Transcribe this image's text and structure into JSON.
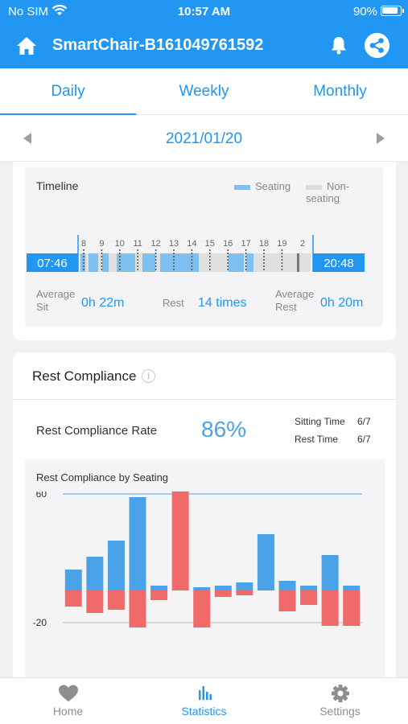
{
  "status": {
    "carrier": "No SIM",
    "time": "10:57 AM",
    "battery": "90%"
  },
  "appbar": {
    "title": "SmartChair-B161049761592"
  },
  "tabs": [
    "Daily",
    "Weekly",
    "Monthly"
  ],
  "date": "2021/01/20",
  "timeline": {
    "title": "Timeline",
    "legend_seating": "Seating",
    "legend_nonseating": "Non-seating",
    "hours": [
      "8",
      "9",
      "10",
      "11",
      "12",
      "13",
      "14",
      "15",
      "16",
      "17",
      "18",
      "19",
      "2"
    ],
    "start": "07:46",
    "end": "20:48",
    "avg_sit_label": "Average Sit",
    "avg_sit_value": "0h 22m",
    "rest_label": "Rest",
    "rest_value": "14 times",
    "avg_rest_label": "Average Rest",
    "avg_rest_value": "0h 20m"
  },
  "compliance": {
    "title": "Rest Compliance",
    "rate_label": "Rest Compliance Rate",
    "rate_value": "86%",
    "sitting_label": "Sitting Time",
    "sitting_value": "6/7",
    "rest_label": "Rest Time",
    "rest_value": "6/7",
    "chart_title": "Rest Compliance by Seating"
  },
  "chart_data": {
    "type": "bar",
    "title": "Rest Compliance by Seating",
    "yticks": [
      60,
      -20
    ],
    "reference_line": 60,
    "series": [
      {
        "color": "#4aa3e8",
        "values": [
          13,
          21,
          31,
          58,
          3,
          0,
          2,
          3,
          5,
          35,
          6,
          3,
          22,
          3
        ]
      },
      {
        "color": "#f06a6a",
        "values": [
          -10,
          -14,
          -12,
          -23,
          -6,
          64,
          -23,
          -4,
          -3,
          0,
          -13,
          -9,
          -22,
          -22
        ]
      }
    ],
    "colors": {
      "positive": "#4aa3e8",
      "negative": "#f06a6a",
      "reference": "#4aa3e8"
    }
  },
  "tabbar": {
    "items": [
      {
        "label": "Home",
        "icon": "heart-icon"
      },
      {
        "label": "Statistics",
        "icon": "bar-chart-icon"
      },
      {
        "label": "Settings",
        "icon": "gear-icon"
      }
    ],
    "active_index": 1,
    "active_color": "#2196f3",
    "inactive_color": "#8e8e8e"
  }
}
